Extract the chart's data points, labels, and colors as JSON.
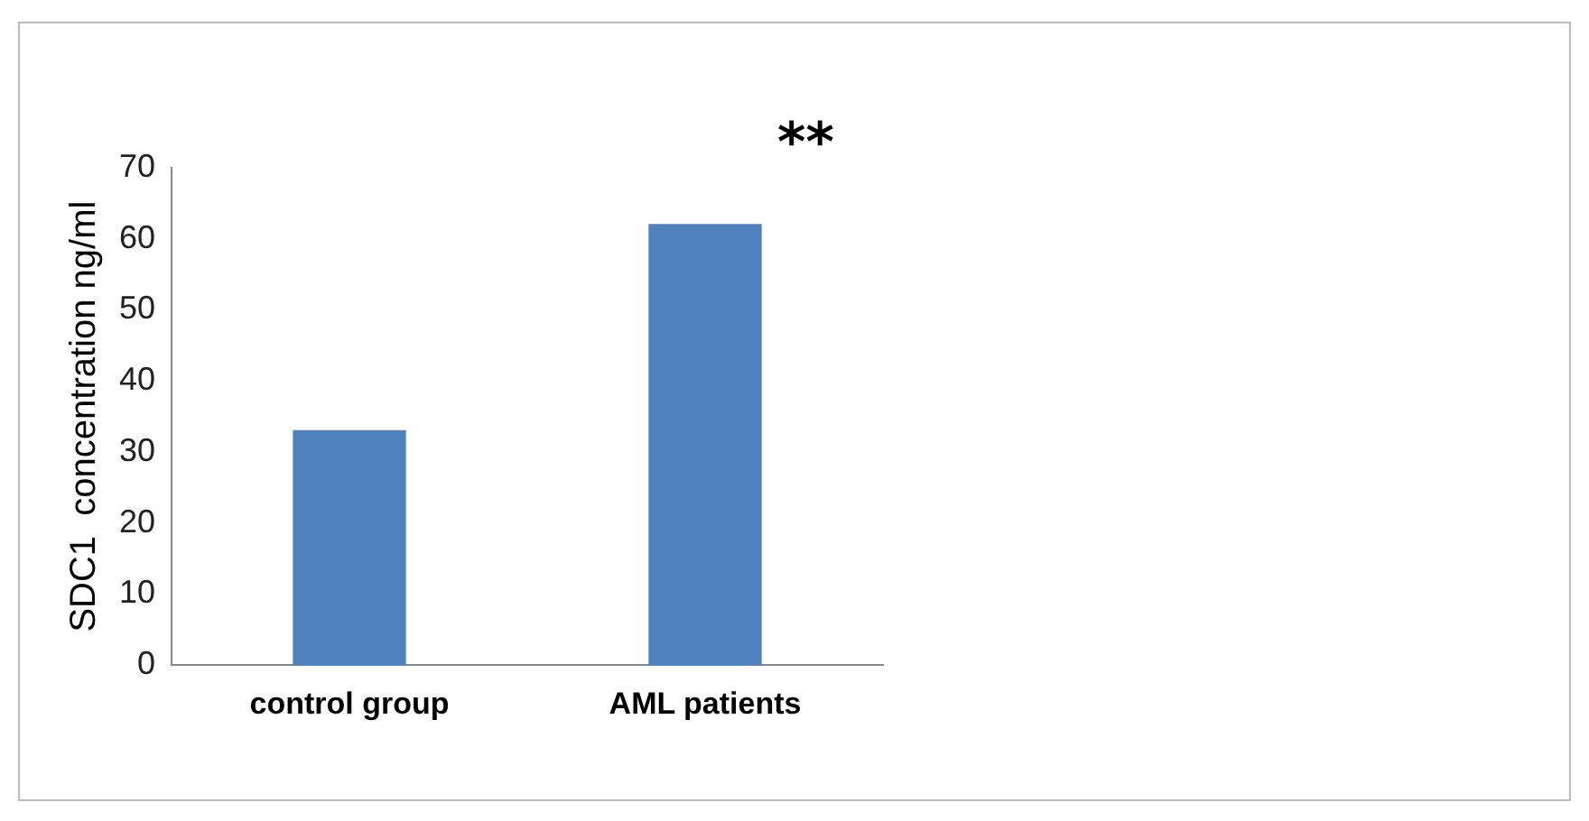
{
  "chart_data": {
    "type": "bar",
    "ylabel": "SDC1  concentration ng/ml",
    "categories": [
      "control group",
      "AML patients"
    ],
    "values": [
      33,
      62
    ],
    "color": "#4f81bd",
    "ylim": [
      0,
      70
    ],
    "yticks": [
      0,
      10,
      20,
      30,
      40,
      50,
      60,
      70
    ],
    "grid": false,
    "legend": false,
    "annotations": [
      "**"
    ]
  }
}
